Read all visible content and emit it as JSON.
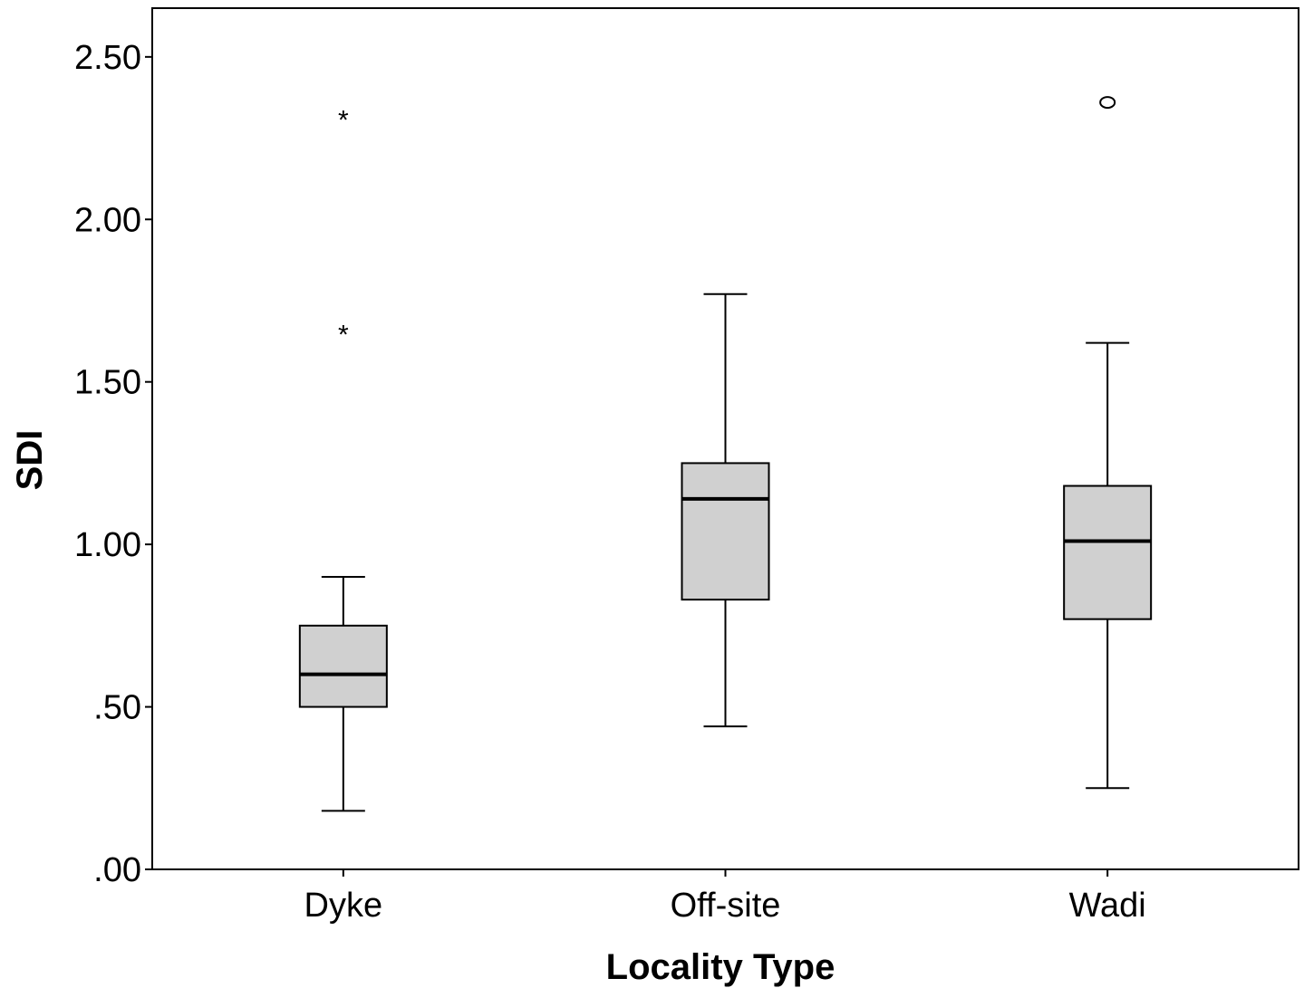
{
  "chart_data": {
    "type": "boxplot",
    "xlabel": "Locality Type",
    "ylabel": "SDI",
    "ylim": [
      0,
      2.65
    ],
    "y_ticks": [
      0,
      0.5,
      1.0,
      1.5,
      2.0,
      2.5
    ],
    "y_tick_labels": [
      ".00",
      ".50",
      "1.00",
      "1.50",
      "2.00",
      "2.50"
    ],
    "grid": false,
    "box_fill": "#d0d0d0",
    "categories": [
      "Dyke",
      "Off-site",
      "Wadi"
    ],
    "boxes": [
      {
        "category": "Dyke",
        "whisker_low": 0.18,
        "q1": 0.5,
        "median": 0.6,
        "q3": 0.75,
        "whisker_high": 0.9,
        "outliers": [
          {
            "value": 1.66,
            "marker": "*"
          },
          {
            "value": 2.32,
            "marker": "*"
          }
        ]
      },
      {
        "category": "Off-site",
        "whisker_low": 0.44,
        "q1": 0.83,
        "median": 1.14,
        "q3": 1.25,
        "whisker_high": 1.77,
        "outliers": []
      },
      {
        "category": "Wadi",
        "whisker_low": 0.25,
        "q1": 0.77,
        "median": 1.01,
        "q3": 1.18,
        "whisker_high": 1.62,
        "outliers": [
          {
            "value": 2.36,
            "marker": "o"
          }
        ]
      }
    ]
  }
}
